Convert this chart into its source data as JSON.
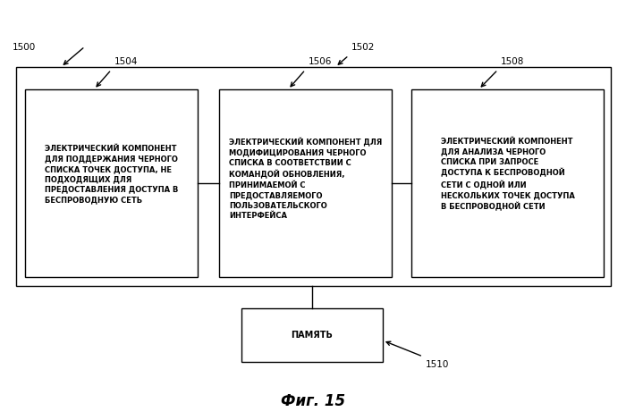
{
  "bg_color": "#ffffff",
  "label_1500": "1500",
  "label_1502": "1502",
  "label_1504": "1504",
  "label_1506": "1506",
  "label_1508": "1508",
  "label_1510": "1510",
  "title": "Фиг. 15",
  "text1": "ЭЛЕКТРИЧЕСКИЙ КОМПОНЕНТ\nДЛЯ ПОДДЕРЖАНИЯ ЧЕРНОГО\nСПИСКА ТОЧЕК ДОСТУПА, НЕ\nПОДХОДЯЩИХ ДЛЯ\nПРЕДОСТАВЛЕНИЯ ДОСТУПА В\nБЕСПРОВОДНУЮ СЕТЬ",
  "text2": "ЭЛЕКТРИЧЕСКИЙ КОМПОНЕНТ ДЛЯ\nМОДИФИЦИРОВАНИЯ ЧЕРНОГО\nСПИСКА В СООТВЕТСТВИИ С\nКОМАНДОЙ ОБНОВЛЕНИЯ,\nПРИНИМАЕМОЙ С\nПРЕДОСТАВЛЯЕМОГО\nПОЛЬЗОВАТЕЛЬСКОГО\nИНТЕРФЕЙСА",
  "text3": "ЭЛЕКТРИЧЕСКИЙ КОМПОНЕНТ\nДЛЯ АНАЛИЗА ЧЕРНОГО\nСПИСКА ПРИ ЗАПРОСЕ\nДОСТУПА К БЕСПРОВОДНОЙ\nСЕТИ С ОДНОЙ ИЛИ\nНЕСКОЛЬКИХ ТОЧЕК ДОСТУПА\nВ БЕСПРОВОДНОЙ СЕТИ",
  "mem_text": "ПАМЯТЬ",
  "text_fontsize": 6.0,
  "label_fontsize": 7.5,
  "title_fontsize": 12,
  "lw": 1.0
}
